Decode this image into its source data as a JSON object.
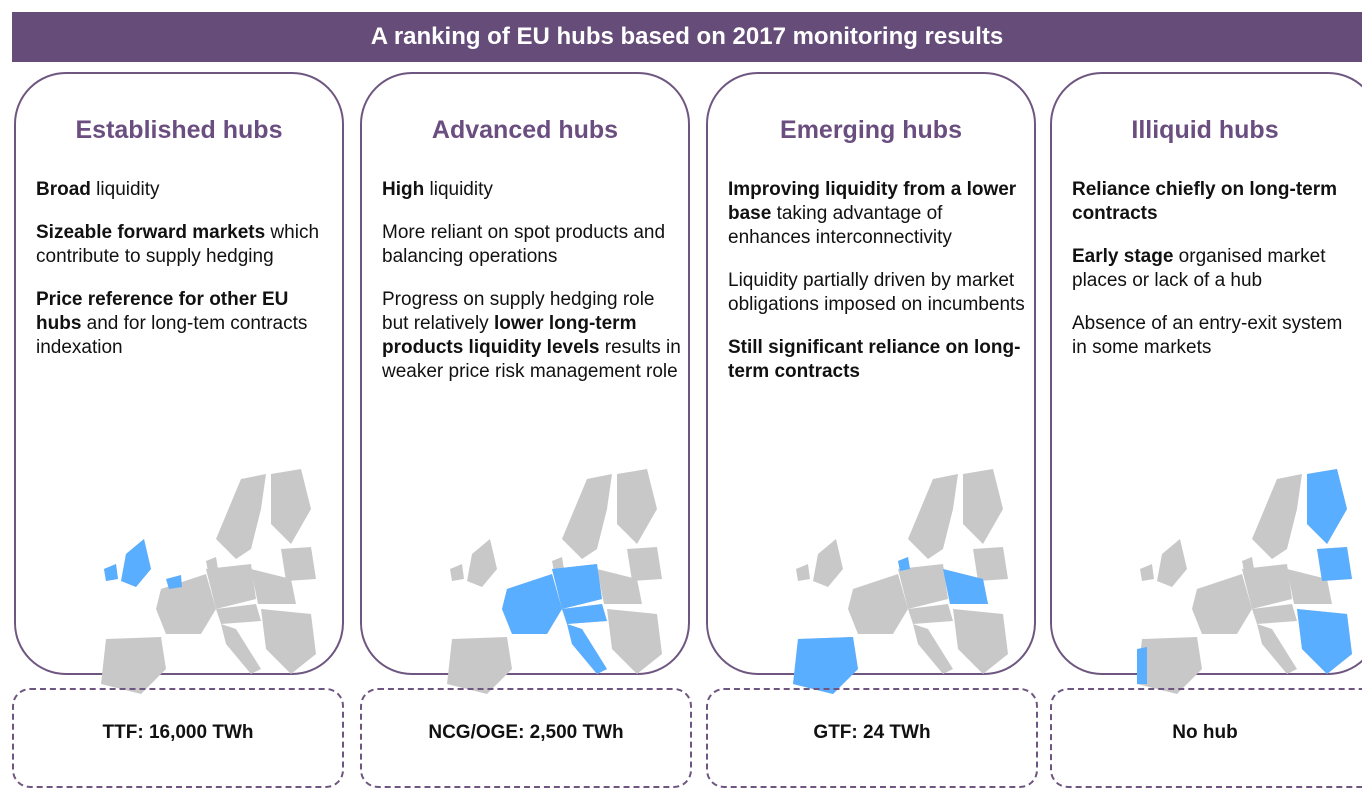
{
  "header": {
    "title": "A ranking of EU hubs based on 2017 monitoring results"
  },
  "columns": [
    {
      "title": "Established hubs",
      "paragraphs": [
        [
          {
            "text": "Broad",
            "bold": true
          },
          {
            "text": " liquidity"
          }
        ],
        [
          {
            "text": "Sizeable forward markets",
            "bold": true
          },
          {
            "text": " which contribute to supply hedging"
          }
        ],
        [
          {
            "text": "Price reference for other EU hubs",
            "bold": true
          },
          {
            "text": " and for long-tem contracts indexation"
          }
        ]
      ],
      "footer": "TTF: 16,000 TWh"
    },
    {
      "title": "Advanced hubs",
      "paragraphs": [
        [
          {
            "text": "High",
            "bold": true
          },
          {
            "text": " liquidity"
          }
        ],
        [
          {
            "text": "More reliant on spot products and balancing operations"
          }
        ],
        [
          {
            "text": "Progress on supply hedging role but relatively "
          },
          {
            "text": "lower long-term products liquidity levels",
            "bold": true
          },
          {
            "text": " results in weaker price risk management role"
          }
        ]
      ],
      "footer": "NCG/OGE: 2,500 TWh"
    },
    {
      "title": "Emerging hubs",
      "paragraphs": [
        [
          {
            "text": "Improving liquidity from a lower base",
            "bold": true
          },
          {
            "text": " taking advantage of enhances interconnectivity"
          }
        ],
        [
          {
            "text": "Liquidity partially driven by market obligations imposed on incumbents"
          }
        ],
        [
          {
            "text": "Still significant reliance on long-term contracts",
            "bold": true
          }
        ]
      ],
      "footer": "GTF: 24 TWh"
    },
    {
      "title": "Illiquid hubs",
      "paragraphs": [
        [
          {
            "text": "Reliance chiefly on long-term contracts",
            "bold": true
          }
        ],
        [
          {
            "text": "Early stage",
            "bold": true
          },
          {
            "text": " organised market places or lack of a hub"
          }
        ],
        [
          {
            "text": "Absence of an entry-exit system in some markets"
          }
        ]
      ],
      "footer": "No hub"
    }
  ]
}
